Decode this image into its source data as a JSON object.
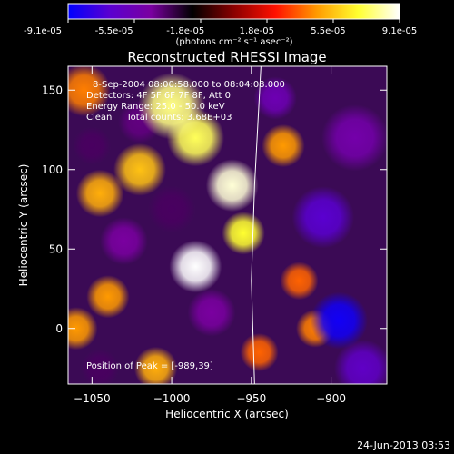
{
  "chart_data": {
    "type": "heatmap",
    "title": "Reconstructed RHESSI Image",
    "xlabel": "Heliocentric X (arcsec)",
    "ylabel": "Heliocentric Y (arcsec)",
    "xlim": [
      -1065,
      -865
    ],
    "ylim": [
      -35,
      165
    ],
    "xticks": [
      -1050,
      -1000,
      -950,
      -900
    ],
    "yticks": [
      0,
      50,
      100,
      150
    ],
    "colorbar": {
      "ticks": [
        "-9.1e-05",
        "-5.5e-05",
        "-1.8e-05",
        "1.8e-05",
        "5.5e-05",
        "9.1e-05"
      ],
      "unit_label": "(photons cm⁻² s⁻¹ asec⁻²)",
      "range": [
        -9.1e-05,
        9.1e-05
      ],
      "colormap": [
        "#0000ff",
        "#5a00d0",
        "#7a00a0",
        "#000000",
        "#8a0000",
        "#ff1000",
        "#ff9a00",
        "#ffff30",
        "#ffffff"
      ]
    },
    "annotations": {
      "time": "8-Sep-2004 08:00:58.000 to 08:04:08.000",
      "detectors": "Detectors: 4F 5F 6F 7F 8F, Att 0",
      "energy": "Energy Range: 25.0 - 50.0 keV",
      "clean": "Clean     Total counts: 3.68E+03",
      "peak": "Position of Peak = [-989,39]"
    },
    "limb_curve": [
      [
        -948,
        -35
      ],
      [
        -950,
        30
      ],
      [
        -948,
        90
      ],
      [
        -944,
        165
      ]
    ],
    "sources": [
      {
        "x": -1000,
        "y": 140,
        "v": 0.85,
        "r": 14
      },
      {
        "x": -985,
        "y": 120,
        "v": 0.8,
        "r": 12
      },
      {
        "x": -1020,
        "y": 100,
        "v": 0.6,
        "r": 11
      },
      {
        "x": -962,
        "y": 90,
        "v": 0.95,
        "r": 11
      },
      {
        "x": -955,
        "y": 60,
        "v": 0.75,
        "r": 9
      },
      {
        "x": -985,
        "y": 39,
        "v": 1.0,
        "r": 11
      },
      {
        "x": -1045,
        "y": 85,
        "v": 0.55,
        "r": 10
      },
      {
        "x": -1055,
        "y": 150,
        "v": 0.45,
        "r": 11
      },
      {
        "x": -1040,
        "y": 20,
        "v": 0.5,
        "r": 9
      },
      {
        "x": -1060,
        "y": 0,
        "v": 0.5,
        "r": 9
      },
      {
        "x": -1010,
        "y": -25,
        "v": 0.55,
        "r": 9
      },
      {
        "x": -930,
        "y": 115,
        "v": 0.5,
        "r": 9
      },
      {
        "x": -920,
        "y": 30,
        "v": 0.4,
        "r": 8
      },
      {
        "x": -910,
        "y": 0,
        "v": 0.45,
        "r": 8
      },
      {
        "x": -945,
        "y": -15,
        "v": 0.4,
        "r": 8
      },
      {
        "x": -1030,
        "y": 55,
        "v": -0.5,
        "r": 10
      },
      {
        "x": -1000,
        "y": 75,
        "v": -0.4,
        "r": 10
      },
      {
        "x": -975,
        "y": 10,
        "v": -0.5,
        "r": 10
      },
      {
        "x": -895,
        "y": 5,
        "v": -0.95,
        "r": 12
      },
      {
        "x": -905,
        "y": 70,
        "v": -0.75,
        "r": 13
      },
      {
        "x": -885,
        "y": 120,
        "v": -0.55,
        "r": 14
      },
      {
        "x": -880,
        "y": -25,
        "v": -0.7,
        "r": 12
      },
      {
        "x": -1020,
        "y": 130,
        "v": -0.45,
        "r": 9
      },
      {
        "x": -1050,
        "y": 115,
        "v": -0.4,
        "r": 8
      },
      {
        "x": -935,
        "y": 145,
        "v": -0.6,
        "r": 9
      },
      {
        "x": -1045,
        "y": -25,
        "v": -0.4,
        "r": 8
      }
    ]
  },
  "footer_date": "24-Jun-2013 03:53"
}
